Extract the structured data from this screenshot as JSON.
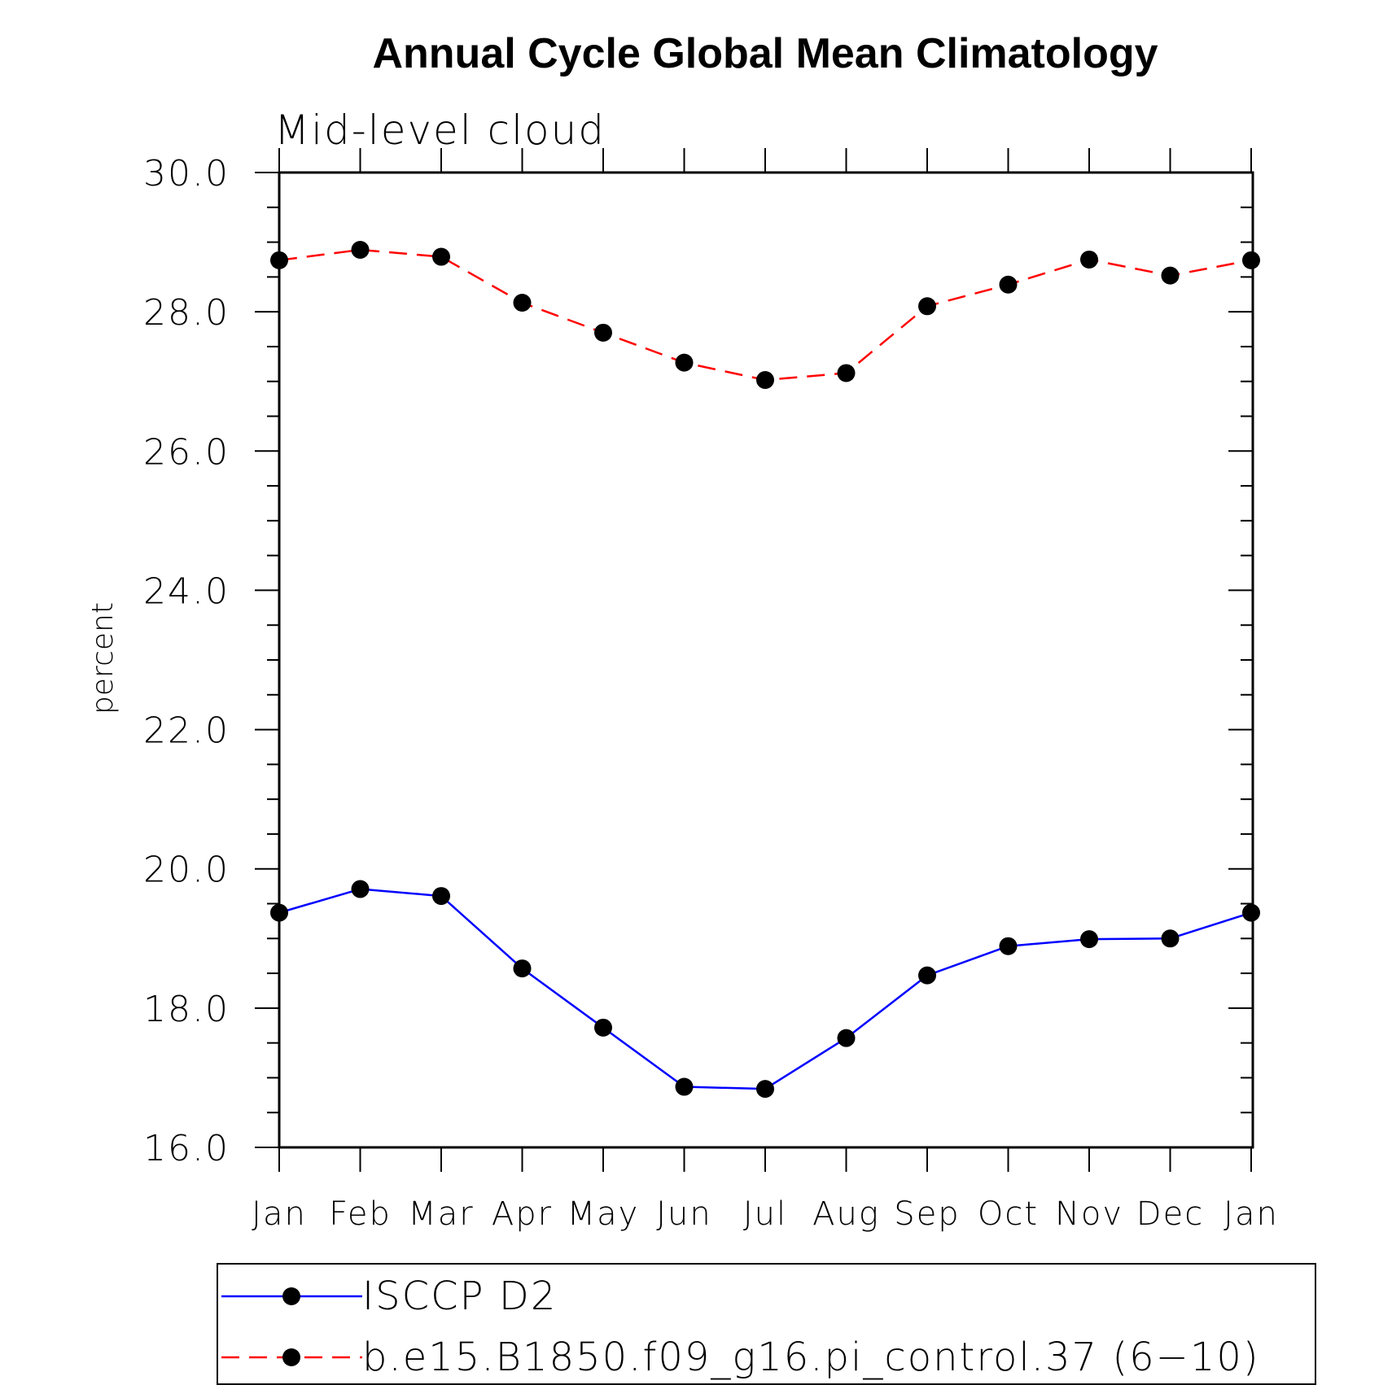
{
  "chart_data": {
    "type": "line",
    "title": "Annual Cycle Global Mean Climatology",
    "subtitle": "Mid-level cloud",
    "xlabel": "",
    "ylabel": "percent",
    "categories": [
      "Jan",
      "Feb",
      "Mar",
      "Apr",
      "May",
      "Jun",
      "Jul",
      "Aug",
      "Sep",
      "Oct",
      "Nov",
      "Dec",
      "Jan"
    ],
    "ylim": [
      16.0,
      30.0
    ],
    "yticks": [
      "16.0",
      "18.0",
      "20.0",
      "22.0",
      "24.0",
      "26.0",
      "28.0",
      "30.0"
    ],
    "ytick_values": [
      16,
      18,
      20,
      22,
      24,
      26,
      28,
      30
    ],
    "y_minor_step": 0.5,
    "grid": false,
    "legend_position": "bottom",
    "series": [
      {
        "name": "ISCCP D2",
        "color": "#0000ff",
        "line_style": "solid",
        "marker": "filled-circle",
        "values": [
          19.37,
          19.71,
          19.61,
          18.57,
          17.72,
          16.87,
          16.84,
          17.57,
          18.47,
          18.89,
          18.99,
          19.0,
          19.37
        ]
      },
      {
        "name": "b.e15.B1850.f09_g16.pi_control.37 (6−10)",
        "color": "#ff0000",
        "line_style": "dashed",
        "marker": "filled-circle",
        "values": [
          28.74,
          28.89,
          28.79,
          28.13,
          27.7,
          27.27,
          27.02,
          27.12,
          28.08,
          28.39,
          28.75,
          28.52,
          28.74
        ]
      }
    ]
  }
}
